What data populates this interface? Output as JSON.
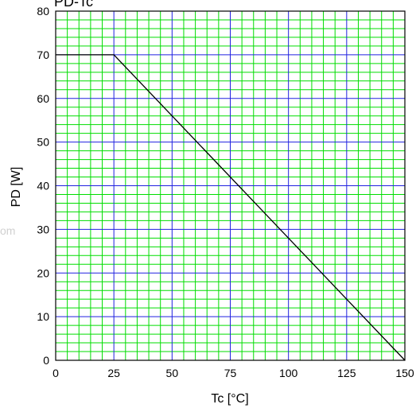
{
  "chart_data": {
    "type": "line",
    "title": "PD-Tc",
    "watermark": "om",
    "xlabel": "Tc [°C]",
    "ylabel": "PD [W]",
    "xlim": [
      0,
      150
    ],
    "ylim": [
      0,
      80
    ],
    "x_ticks": [
      0,
      25,
      50,
      75,
      100,
      125,
      150
    ],
    "y_ticks": [
      0,
      10,
      20,
      30,
      40,
      50,
      60,
      70,
      80
    ],
    "x_minor_step": 5,
    "y_minor_step": 2,
    "grid": true,
    "colors": {
      "major_grid": "#2020e0",
      "minor_grid": "#00dd00",
      "line": "#000000"
    },
    "series": [
      {
        "x": [
          0,
          25,
          150
        ],
        "y": [
          70,
          70,
          0
        ]
      }
    ]
  }
}
